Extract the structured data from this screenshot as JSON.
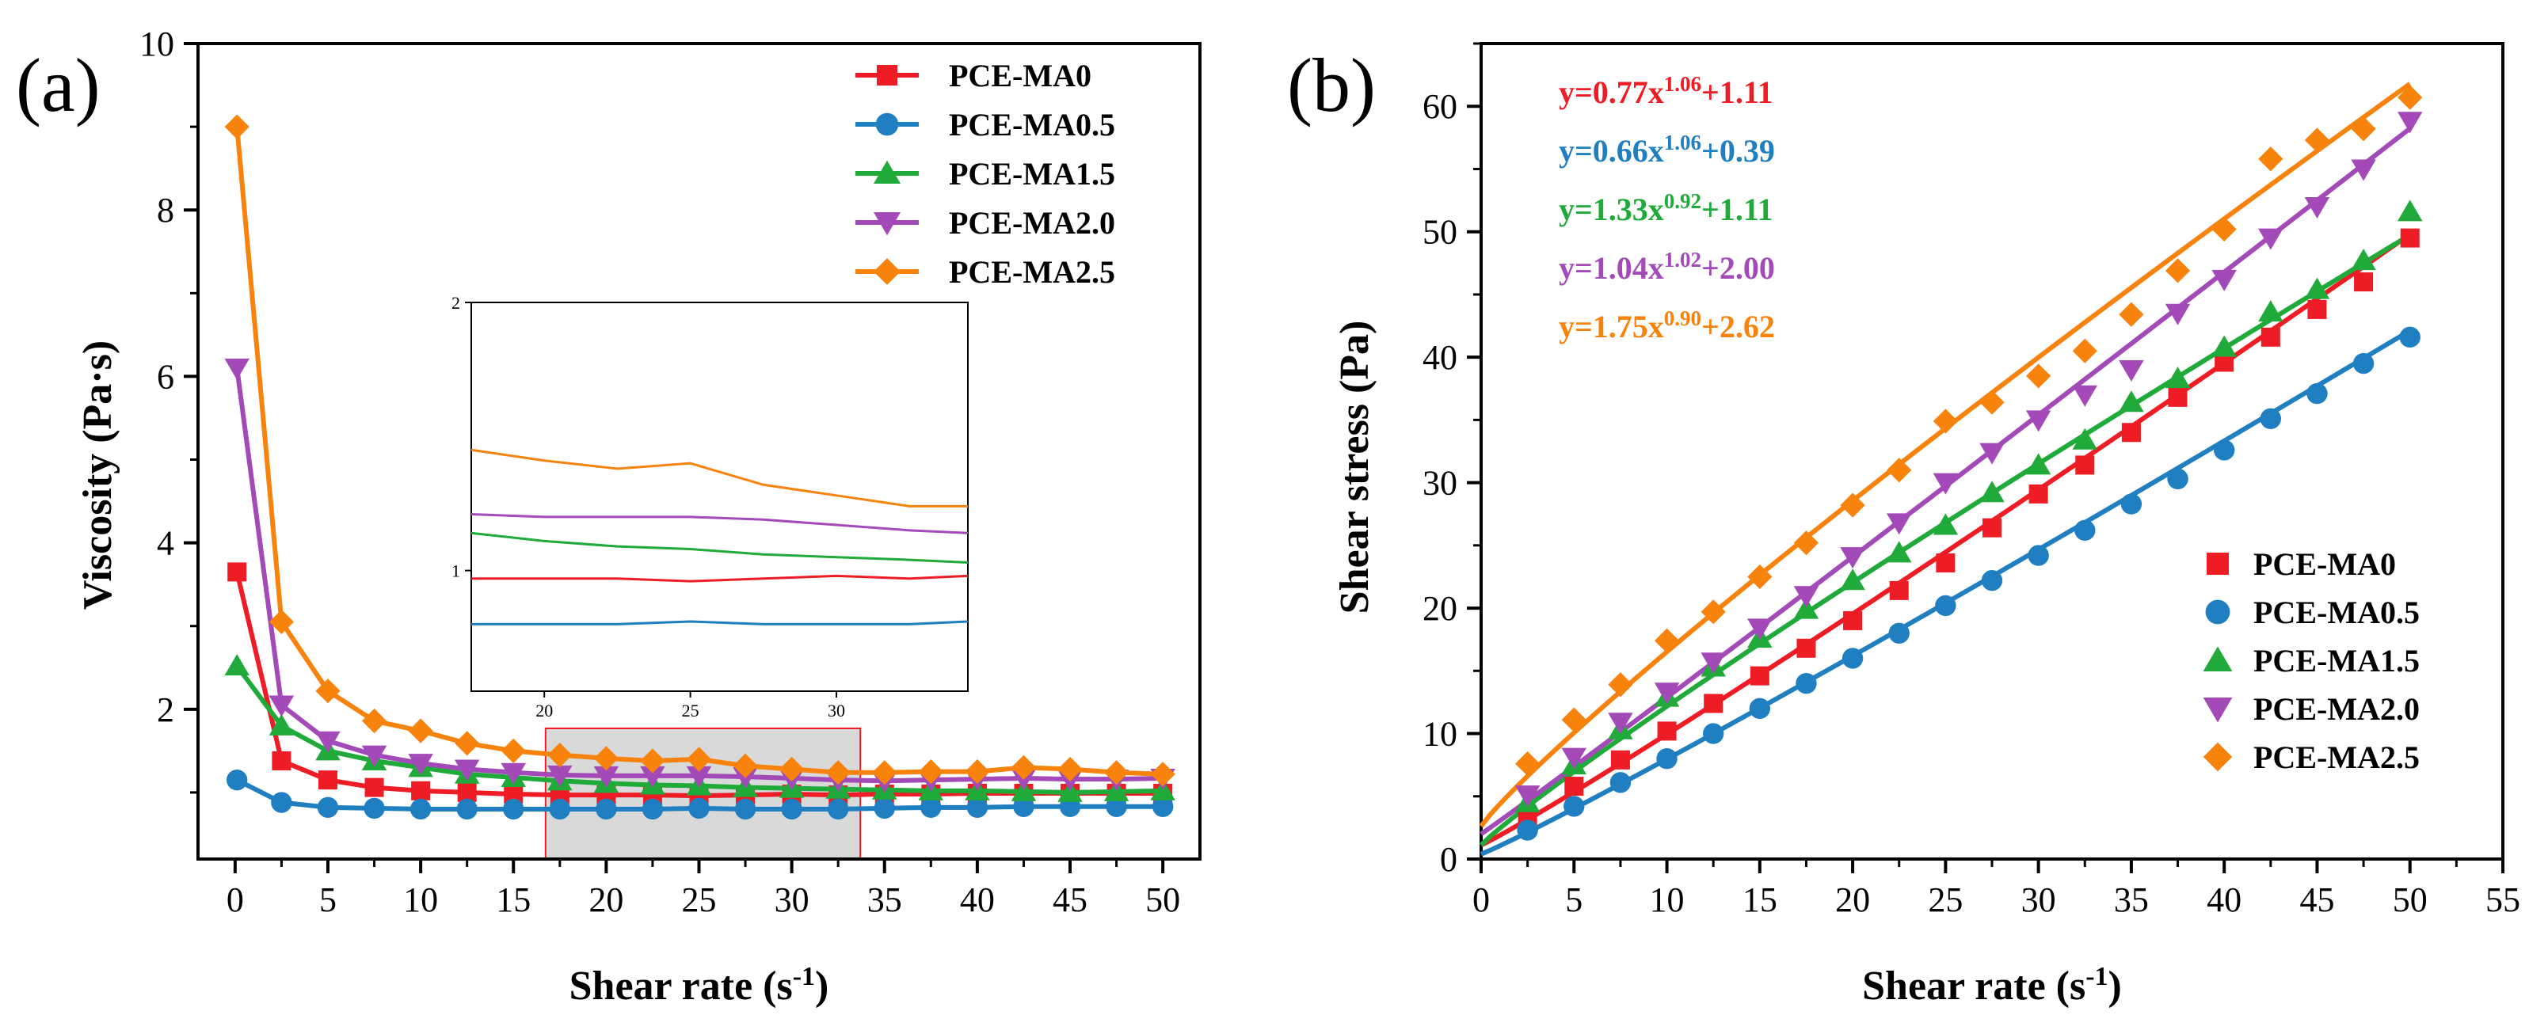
{
  "chart_data": [
    {
      "panel": "(a)",
      "type": "line",
      "xlabel": "Shear rate (s",
      "xlabel_sup": "-1",
      "xlabel_end": ")",
      "ylabel": "Viscosity (Pa·s)",
      "xlim": [
        -2,
        52
      ],
      "ylim": [
        0.2,
        10
      ],
      "xticks": [
        "0",
        "5",
        "10",
        "15",
        "20",
        "25",
        "30",
        "35",
        "40",
        "45",
        "50"
      ],
      "yticks": [
        "2",
        "4",
        "6",
        "8",
        "10"
      ],
      "x": [
        0.1,
        2.5,
        5,
        7.5,
        10,
        12.5,
        15,
        17.5,
        20,
        22.5,
        25,
        27.5,
        30,
        32.5,
        35,
        37.5,
        40,
        42.5,
        45,
        47.5,
        50
      ],
      "series": [
        {
          "name": "PCE-MA0",
          "color": "#ee1c25",
          "marker": "square",
          "values": [
            3.65,
            1.38,
            1.15,
            1.06,
            1.02,
            1.0,
            0.98,
            0.97,
            0.97,
            0.97,
            0.96,
            0.97,
            0.98,
            0.97,
            0.98,
            0.98,
            0.99,
            0.99,
            0.99,
            0.99,
            0.99
          ]
        },
        {
          "name": "PCE-MA0.5",
          "color": "#1f7fc1",
          "marker": "circle",
          "values": [
            1.15,
            0.88,
            0.82,
            0.81,
            0.8,
            0.8,
            0.8,
            0.8,
            0.8,
            0.8,
            0.81,
            0.8,
            0.8,
            0.8,
            0.81,
            0.82,
            0.82,
            0.83,
            0.83,
            0.83,
            0.83
          ]
        },
        {
          "name": "PCE-MA1.5",
          "color": "#1faa3a",
          "marker": "triangle-up",
          "values": [
            2.52,
            1.8,
            1.5,
            1.38,
            1.3,
            1.22,
            1.18,
            1.14,
            1.11,
            1.09,
            1.08,
            1.06,
            1.05,
            1.04,
            1.03,
            1.02,
            1.02,
            1.01,
            1.0,
            1.01,
            1.02
          ]
        },
        {
          "name": "PCE-MA2.0",
          "color": "#a34ab8",
          "marker": "triangle-down",
          "values": [
            6.1,
            2.05,
            1.62,
            1.45,
            1.35,
            1.28,
            1.24,
            1.21,
            1.2,
            1.2,
            1.2,
            1.19,
            1.17,
            1.15,
            1.14,
            1.15,
            1.16,
            1.17,
            1.16,
            1.16,
            1.17
          ]
        },
        {
          "name": "PCE-MA2.5",
          "color": "#f7820c",
          "marker": "diamond",
          "values": [
            9.0,
            3.05,
            2.22,
            1.86,
            1.74,
            1.59,
            1.5,
            1.45,
            1.41,
            1.38,
            1.4,
            1.32,
            1.28,
            1.24,
            1.24,
            1.25,
            1.25,
            1.3,
            1.28,
            1.24,
            1.22
          ]
        }
      ],
      "highlight_x_range": [
        17.5,
        32.5
      ],
      "inset": {
        "xlim": [
          17.5,
          34.5
        ],
        "ylim": [
          0.55,
          2.0
        ],
        "xticks": [
          "20",
          "25",
          "30"
        ],
        "yticks": [
          "1",
          "2"
        ]
      },
      "legend_position": "top-right"
    },
    {
      "panel": "(b)",
      "type": "scatter",
      "xlabel": "Shear rate (s",
      "xlabel_sup": "-1",
      "xlabel_end": ")",
      "ylabel": "Shear stress (Pa)",
      "xlim": [
        0,
        55
      ],
      "ylim": [
        0,
        65
      ],
      "xticks": [
        "0",
        "5",
        "10",
        "15",
        "20",
        "25",
        "30",
        "35",
        "40",
        "45",
        "50",
        "55"
      ],
      "yticks": [
        "0",
        "10",
        "20",
        "30",
        "40",
        "50",
        "60"
      ],
      "x": [
        2.5,
        5,
        7.5,
        10,
        12.5,
        15,
        17.5,
        20,
        22.5,
        25,
        27.5,
        30,
        32.5,
        35,
        37.5,
        40,
        42.5,
        45,
        47.5,
        50
      ],
      "series": [
        {
          "name": "PCE-MA0",
          "color": "#ee1c25",
          "marker": "square",
          "values": [
            3.4,
            5.8,
            7.9,
            10.2,
            12.4,
            14.6,
            16.8,
            19.0,
            21.4,
            23.6,
            26.4,
            29.1,
            31.4,
            34.0,
            36.8,
            39.6,
            41.6,
            43.8,
            46.0,
            49.5
          ],
          "fit": {
            "a": 0.77,
            "b": 1.06,
            "c": 1.11,
            "eq_main": "y=0.77x",
            "eq_exp": "1.06",
            "eq_tail": "+1.11"
          }
        },
        {
          "name": "PCE-MA0.5",
          "color": "#1f7fc1",
          "marker": "circle",
          "values": [
            2.3,
            4.2,
            6.1,
            8.0,
            10.0,
            12.0,
            14.0,
            16.0,
            18.0,
            20.2,
            22.2,
            24.2,
            26.2,
            28.3,
            30.3,
            32.6,
            35.1,
            37.1,
            39.5,
            41.6
          ],
          "fit": {
            "a": 0.66,
            "b": 1.06,
            "c": 0.39,
            "eq_main": "y=0.66x",
            "eq_exp": "1.06",
            "eq_tail": "+0.39"
          }
        },
        {
          "name": "PCE-MA1.5",
          "color": "#1faa3a",
          "marker": "triangle-up",
          "values": [
            4.5,
            7.5,
            10.3,
            12.9,
            15.3,
            17.6,
            19.9,
            22.2,
            24.4,
            26.6,
            29.2,
            31.4,
            33.4,
            36.4,
            38.3,
            40.8,
            43.6,
            45.4,
            47.7,
            51.6
          ],
          "fit": {
            "a": 1.33,
            "b": 0.92,
            "c": 1.11,
            "eq_main": "y=1.33x",
            "eq_exp": "0.92",
            "eq_tail": "+1.11"
          }
        },
        {
          "name": "PCE-MA2.0",
          "color": "#a34ab8",
          "marker": "triangle-down",
          "values": [
            5.1,
            8.1,
            10.9,
            13.3,
            15.7,
            18.4,
            21.0,
            24.1,
            26.8,
            30.0,
            32.4,
            35.0,
            37.0,
            39.0,
            43.5,
            46.2,
            49.5,
            52.0,
            55.0,
            58.8
          ],
          "fit": {
            "a": 1.04,
            "b": 1.02,
            "c": 2.0,
            "eq_main": "y=1.04x",
            "eq_exp": "1.02",
            "eq_tail": "+2.00"
          }
        },
        {
          "name": "PCE-MA2.5",
          "color": "#f7820c",
          "marker": "diamond",
          "values": [
            7.6,
            11.1,
            13.9,
            17.4,
            19.7,
            22.5,
            25.2,
            28.2,
            31.0,
            34.9,
            36.4,
            38.5,
            40.5,
            43.4,
            46.9,
            50.2,
            55.8,
            57.3,
            58.2,
            60.7
          ],
          "fit": {
            "a": 1.75,
            "b": 0.9,
            "c": 2.62,
            "eq_main": "y=1.75x",
            "eq_exp": "0.90",
            "eq_tail": "+2.62"
          }
        }
      ],
      "legend_position": "bottom-right"
    }
  ]
}
